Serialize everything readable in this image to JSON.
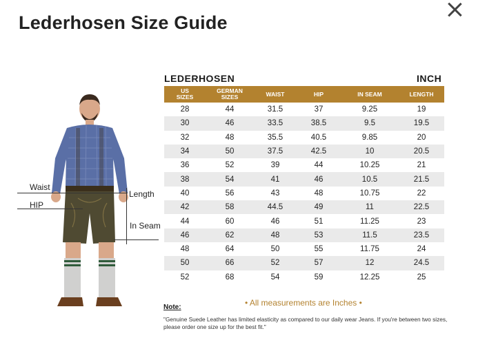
{
  "title": "Lederhosen Size Guide",
  "close_label": "close",
  "figure": {
    "labels": {
      "waist": "Waist",
      "hip": "HIP",
      "length": "Length",
      "inseam": "In Seam"
    }
  },
  "table": {
    "title": "LEDERHOSEN",
    "unit": "INCH",
    "headers": [
      "US SIZES",
      "GERMAN SIZES",
      "WAIST",
      "HIP",
      "IN SEAM",
      "LENGTH"
    ],
    "rows": [
      [
        "28",
        "44",
        "31.5",
        "37",
        "9.25",
        "19"
      ],
      [
        "30",
        "46",
        "33.5",
        "38.5",
        "9.5",
        "19.5"
      ],
      [
        "32",
        "48",
        "35.5",
        "40.5",
        "9.85",
        "20"
      ],
      [
        "34",
        "50",
        "37.5",
        "42.5",
        "10",
        "20.5"
      ],
      [
        "36",
        "52",
        "39",
        "44",
        "10.25",
        "21"
      ],
      [
        "38",
        "54",
        "41",
        "46",
        "10.5",
        "21.5"
      ],
      [
        "40",
        "56",
        "43",
        "48",
        "10.75",
        "22"
      ],
      [
        "42",
        "58",
        "44.5",
        "49",
        "11",
        "22.5"
      ],
      [
        "44",
        "60",
        "46",
        "51",
        "11.25",
        "23"
      ],
      [
        "46",
        "62",
        "48",
        "53",
        "11.5",
        "23.5"
      ],
      [
        "48",
        "64",
        "50",
        "55",
        "11.75",
        "24"
      ],
      [
        "50",
        "66",
        "52",
        "57",
        "12",
        "24.5"
      ],
      [
        "52",
        "68",
        "54",
        "59",
        "12.25",
        "25"
      ]
    ]
  },
  "note": {
    "label": "Note:",
    "emphasis": "• All measurements are Inches •",
    "text": "\"Genuine Suede Leather has limited elasticity as compared to our daily wear Jeans. If you're between two sizes, please order one size up for the best fit.\""
  },
  "colors": {
    "accent": "#b3822f",
    "row_alt": "#eaeaea",
    "shirt": "#5a6fa6",
    "shorts": "#4f4a32"
  }
}
